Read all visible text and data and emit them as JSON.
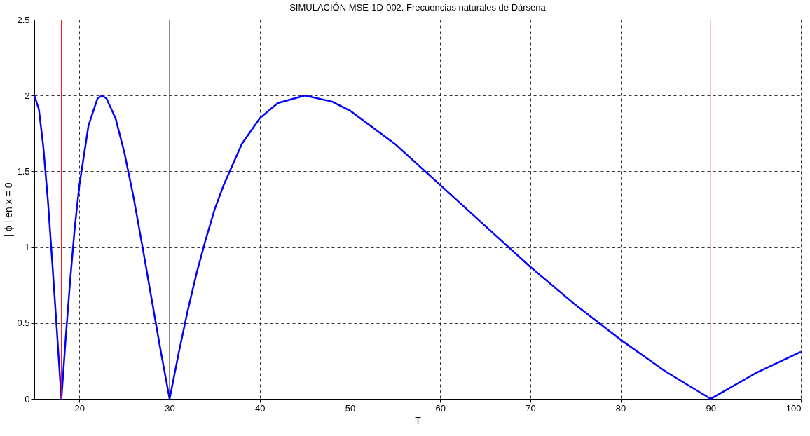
{
  "chart_data": {
    "type": "line",
    "title": "SIMULACIÓN MSE-1D-002. Frecuencias naturales de Dársena",
    "xlabel": "T",
    "ylabel": "| ϕ |  en x = 0",
    "x": [
      15,
      15.5,
      16,
      16.5,
      17,
      17.5,
      18,
      18.5,
      19,
      19.5,
      20,
      21,
      22,
      22.5,
      23,
      24,
      25,
      26,
      27,
      28,
      29,
      30,
      31,
      32,
      33,
      34,
      35,
      36,
      38,
      40,
      42,
      45,
      48,
      50,
      55,
      60,
      65,
      70,
      75,
      80,
      85,
      90,
      95,
      100
    ],
    "series": [
      {
        "color": "#0000ff",
        "values": [
          2.0,
          1.91,
          1.66,
          1.31,
          0.89,
          0.45,
          0.0,
          0.42,
          0.8,
          1.14,
          1.41,
          1.8,
          1.98,
          2.0,
          1.98,
          1.85,
          1.62,
          1.33,
          1.0,
          0.66,
          0.32,
          0.0,
          0.3,
          0.58,
          0.83,
          1.05,
          1.25,
          1.41,
          1.68,
          1.85,
          1.95,
          2.0,
          1.96,
          1.9,
          1.68,
          1.41,
          1.14,
          0.87,
          0.62,
          0.39,
          0.18,
          0.0,
          0.17,
          0.31
        ]
      }
    ],
    "xlim": [
      15,
      100
    ],
    "xticks": [
      20,
      30,
      40,
      50,
      60,
      70,
      80,
      90,
      100
    ],
    "ylim": [
      0,
      2.5
    ],
    "yticks": [
      0,
      0.5,
      1,
      1.5,
      2,
      2.5
    ],
    "grid": true,
    "line_style": "solid",
    "marker": "none",
    "ref_lines": [
      {
        "axis": "x",
        "value": 18,
        "color": "#ff0000"
      },
      {
        "axis": "x",
        "value": 30,
        "color": "#000000"
      },
      {
        "axis": "x",
        "value": 90,
        "color": "#ff0000"
      }
    ]
  }
}
